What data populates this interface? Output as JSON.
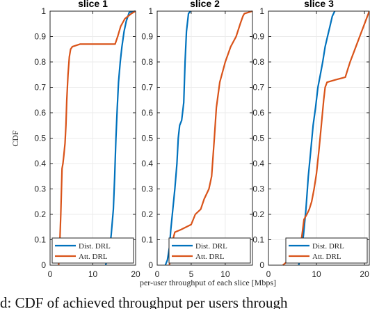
{
  "caption": "d: CDF of achieved throughput per users through",
  "chart_data": {
    "type": "line",
    "ylabel": "CDF",
    "xlabel": "per-user throughput of each slice [Mbps]",
    "ylim": [
      0,
      1
    ],
    "yticks": [
      "0",
      "0.1",
      "0.2",
      "0.3",
      "0.4",
      "0.5",
      "0.6",
      "0.7",
      "0.8",
      "0.9",
      "1"
    ],
    "colors": {
      "dist": "#0072BD",
      "att": "#D95319"
    },
    "grid": true,
    "legend_placement": "bottom-right",
    "subplots": [
      {
        "title": "slice 1",
        "xlim": [
          0,
          20
        ],
        "xticks": [
          "0",
          "10",
          "20"
        ],
        "series": [
          {
            "name": "Dist. DRL",
            "points": [
              [
                13.0,
                0
              ],
              [
                13.3,
                0.02
              ],
              [
                13.8,
                0.05
              ],
              [
                14.3,
                0.12
              ],
              [
                14.8,
                0.22
              ],
              [
                15.1,
                0.35
              ],
              [
                15.4,
                0.5
              ],
              [
                15.7,
                0.62
              ],
              [
                16.0,
                0.72
              ],
              [
                16.4,
                0.8
              ],
              [
                16.8,
                0.86
              ],
              [
                17.3,
                0.92
              ],
              [
                17.8,
                0.96
              ],
              [
                18.5,
                0.995
              ],
              [
                20,
                1.0
              ]
            ]
          },
          {
            "name": "Att. DRL",
            "points": [
              [
                2.0,
                0
              ],
              [
                2.2,
                0.05
              ],
              [
                2.5,
                0.2
              ],
              [
                2.8,
                0.38
              ],
              [
                3.0,
                0.4
              ],
              [
                3.2,
                0.43
              ],
              [
                3.5,
                0.48
              ],
              [
                3.7,
                0.55
              ],
              [
                3.9,
                0.65
              ],
              [
                4.2,
                0.75
              ],
              [
                4.5,
                0.82
              ],
              [
                4.8,
                0.85
              ],
              [
                5.2,
                0.86
              ],
              [
                7,
                0.87
              ],
              [
                11,
                0.87
              ],
              [
                15.2,
                0.87
              ],
              [
                15.8,
                0.9
              ],
              [
                16.5,
                0.94
              ],
              [
                17.5,
                0.97
              ],
              [
                19,
                0.99
              ],
              [
                20,
                1.0
              ]
            ]
          }
        ]
      },
      {
        "title": "slice 2",
        "xlim": [
          0,
          14
        ],
        "xticks": [
          "0",
          "5",
          "10"
        ],
        "series": [
          {
            "name": "Dist. DRL",
            "points": [
              [
                1.2,
                0
              ],
              [
                1.5,
                0.02
              ],
              [
                1.8,
                0.07
              ],
              [
                2.0,
                0.14
              ],
              [
                2.3,
                0.22
              ],
              [
                2.6,
                0.3
              ],
              [
                2.9,
                0.4
              ],
              [
                3.1,
                0.5
              ],
              [
                3.3,
                0.55
              ],
              [
                3.6,
                0.57
              ],
              [
                3.9,
                0.64
              ],
              [
                4.1,
                0.8
              ],
              [
                4.3,
                0.92
              ],
              [
                4.6,
                0.99
              ],
              [
                4.9,
                1.0
              ]
            ]
          },
          {
            "name": "Att. DRL",
            "points": [
              [
                1.8,
                0
              ],
              [
                2.0,
                0.05
              ],
              [
                2.3,
                0.1
              ],
              [
                2.6,
                0.13
              ],
              [
                3.5,
                0.14
              ],
              [
                5.0,
                0.16
              ],
              [
                5.6,
                0.2
              ],
              [
                6.4,
                0.22
              ],
              [
                6.9,
                0.26
              ],
              [
                7.6,
                0.3
              ],
              [
                8.0,
                0.35
              ],
              [
                8.4,
                0.5
              ],
              [
                8.7,
                0.62
              ],
              [
                9.2,
                0.72
              ],
              [
                10,
                0.8
              ],
              [
                10.8,
                0.86
              ],
              [
                11.6,
                0.9
              ],
              [
                12.2,
                0.95
              ],
              [
                12.6,
                0.98
              ],
              [
                12.8,
                0.99
              ],
              [
                14,
                1.0
              ]
            ]
          }
        ]
      },
      {
        "title": "slice 3",
        "xlim": [
          0,
          21
        ],
        "xticks": [
          "0",
          "10",
          "20"
        ],
        "series": [
          {
            "name": "Dist. DRL",
            "points": [
              [
                6.3,
                0
              ],
              [
                6.8,
                0.05
              ],
              [
                7.3,
                0.12
              ],
              [
                7.8,
                0.22
              ],
              [
                8.3,
                0.35
              ],
              [
                8.8,
                0.45
              ],
              [
                9.3,
                0.55
              ],
              [
                9.8,
                0.62
              ],
              [
                10.3,
                0.7
              ],
              [
                10.8,
                0.75
              ],
              [
                11.3,
                0.8
              ],
              [
                11.8,
                0.86
              ],
              [
                12.3,
                0.9
              ],
              [
                12.8,
                0.94
              ],
              [
                13.3,
                0.98
              ],
              [
                13.8,
                1.0
              ]
            ]
          },
          {
            "name": "Att. DRL",
            "points": [
              [
                3.0,
                0
              ],
              [
                3.6,
                0.01
              ],
              [
                4.5,
                0.02
              ],
              [
                5.0,
                0.03
              ],
              [
                6.0,
                0.04
              ],
              [
                6.6,
                0.06
              ],
              [
                7.0,
                0.12
              ],
              [
                7.4,
                0.18
              ],
              [
                8.0,
                0.2
              ],
              [
                8.5,
                0.22
              ],
              [
                9.0,
                0.25
              ],
              [
                9.5,
                0.3
              ],
              [
                10.0,
                0.36
              ],
              [
                10.5,
                0.45
              ],
              [
                11.0,
                0.55
              ],
              [
                11.5,
                0.65
              ],
              [
                11.8,
                0.7
              ],
              [
                12.2,
                0.72
              ],
              [
                14.0,
                0.73
              ],
              [
                16.0,
                0.74
              ],
              [
                16.5,
                0.77
              ],
              [
                17.0,
                0.8
              ],
              [
                18.0,
                0.85
              ],
              [
                19.0,
                0.9
              ],
              [
                20.0,
                0.95
              ],
              [
                21.0,
                1.0
              ]
            ]
          }
        ]
      }
    ]
  }
}
